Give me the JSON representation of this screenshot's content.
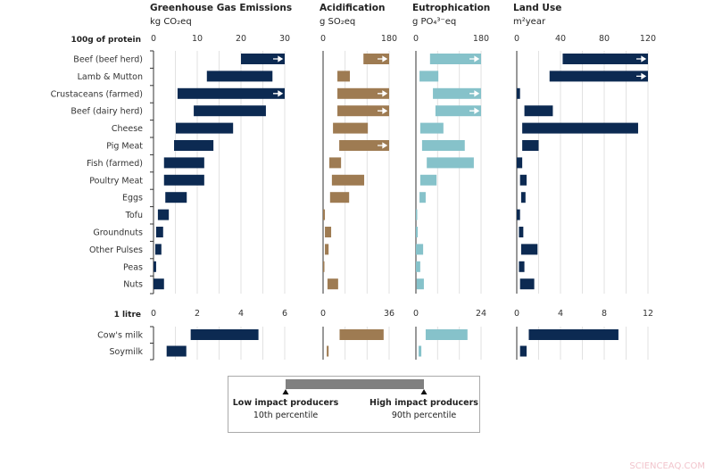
{
  "chart_data": {
    "type": "bar",
    "subtype": "range-bar (10th–90th percentile)",
    "sections": [
      {
        "label": "100g of protein",
        "categories": [
          "Beef (beef herd)",
          "Lamb & Mutton",
          "Crustaceans (farmed)",
          "Beef (dairy herd)",
          "Cheese",
          "Pig Meat",
          "Fish (farmed)",
          "Poultry Meat",
          "Eggs",
          "Tofu",
          "Groundnuts",
          "Other Pulses",
          "Peas",
          "Nuts"
        ],
        "panels": [
          {
            "title": "Greenhouse Gas Emissions",
            "unit": "kg CO₂eq",
            "ticks": [
              0,
              10,
              20,
              30
            ],
            "xlim": [
              0,
              30
            ],
            "grid_step": 5,
            "color": "#0c2a52",
            "low": [
              20,
              12.2,
              5.5,
              9.2,
              5.1,
              4.7,
              2.4,
              2.4,
              2.7,
              1.0,
              0.6,
              0.4,
              0,
              0
            ],
            "high": [
              30,
              27.2,
              30,
              25.7,
              18.2,
              13.7,
              11.6,
              11.6,
              7.6,
              3.5,
              2.2,
              1.8,
              0.6,
              2.4
            ],
            "exceeds_axis": [
              true,
              false,
              true,
              false,
              false,
              false,
              false,
              false,
              false,
              false,
              false,
              false,
              false,
              false
            ]
          },
          {
            "title": "Acidification",
            "unit": "g SO₂eq",
            "ticks": [
              0,
              180
            ],
            "xlim": [
              0,
              180
            ],
            "grid_step": 60,
            "color": "#9e7b52",
            "low": [
              110,
              39,
              39,
              39,
              27,
              44,
              17,
              24,
              19,
              0,
              5,
              5,
              0,
              12
            ],
            "high": [
              180,
              73,
              180,
              180,
              122,
              180,
              49,
              112,
              71,
              5,
              22,
              15,
              2,
              41
            ],
            "exceeds_axis": [
              true,
              false,
              true,
              true,
              false,
              true,
              false,
              false,
              false,
              false,
              false,
              false,
              false,
              false
            ]
          },
          {
            "title": "Eutrophication",
            "unit": "g PO₄³⁻eq",
            "ticks": [
              0,
              180
            ],
            "xlim": [
              0,
              180
            ],
            "grid_step": 60,
            "color": "#86c2ca",
            "low": [
              39,
              10,
              47,
              54,
              12,
              17,
              30,
              12,
              10,
              0,
              0,
              0,
              0,
              2
            ],
            "high": [
              180,
              62,
              180,
              180,
              76,
              135,
              160,
              57,
              27,
              3,
              5,
              20,
              12,
              22
            ],
            "exceeds_axis": [
              true,
              false,
              true,
              true,
              false,
              false,
              false,
              false,
              false,
              false,
              false,
              false,
              false,
              false
            ]
          },
          {
            "title": "Land Use",
            "unit": "m²year",
            "ticks": [
              0,
              40,
              80,
              120
            ],
            "xlim": [
              0,
              120
            ],
            "grid_step": 20,
            "color": "#0c2a52",
            "low": [
              42,
              30,
              0,
              7,
              5,
              5,
              0,
              3,
              4,
              0,
              2,
              4,
              2,
              3
            ],
            "high": [
              120,
              120,
              3,
              33,
              111,
              20,
              5,
              9,
              8,
              3,
              6,
              19,
              7,
              16
            ],
            "exceeds_axis": [
              true,
              true,
              false,
              false,
              false,
              false,
              false,
              false,
              false,
              false,
              false,
              false,
              false,
              false
            ]
          }
        ]
      },
      {
        "label": "1 litre",
        "categories": [
          "Cow's milk",
          "Soymilk"
        ],
        "panels": [
          {
            "ticks": [
              0,
              2,
              4,
              6
            ],
            "xlim": [
              0,
              6
            ],
            "grid_step": 1,
            "color": "#0c2a52",
            "low": [
              1.7,
              0.6
            ],
            "high": [
              4.8,
              1.5
            ],
            "exceeds_axis": [
              false,
              false
            ]
          },
          {
            "ticks": [
              0,
              36
            ],
            "xlim": [
              0,
              36
            ],
            "grid_step": 12,
            "color": "#9e7b52",
            "low": [
              9,
              2
            ],
            "high": [
              33,
              3
            ],
            "exceeds_axis": [
              false,
              false
            ]
          },
          {
            "ticks": [
              0,
              24
            ],
            "xlim": [
              0,
              24
            ],
            "grid_step": 8,
            "color": "#86c2ca",
            "low": [
              3.6,
              1
            ],
            "high": [
              19,
              2
            ],
            "exceeds_axis": [
              false,
              false
            ]
          },
          {
            "ticks": [
              0,
              4,
              8,
              12
            ],
            "xlim": [
              0,
              12
            ],
            "grid_step": 2,
            "color": "#0c2a52",
            "low": [
              1.1,
              0.3
            ],
            "high": [
              9.3,
              0.9
            ],
            "exceeds_axis": [
              false,
              false
            ]
          }
        ]
      }
    ],
    "legend": {
      "low_label": "Low impact producers",
      "low_sub": "10th percentile",
      "high_label": "High impact producers",
      "high_sub": "90th percentile",
      "bar_color": "#808080"
    }
  },
  "watermark": "SCIENCEAQ.COM"
}
